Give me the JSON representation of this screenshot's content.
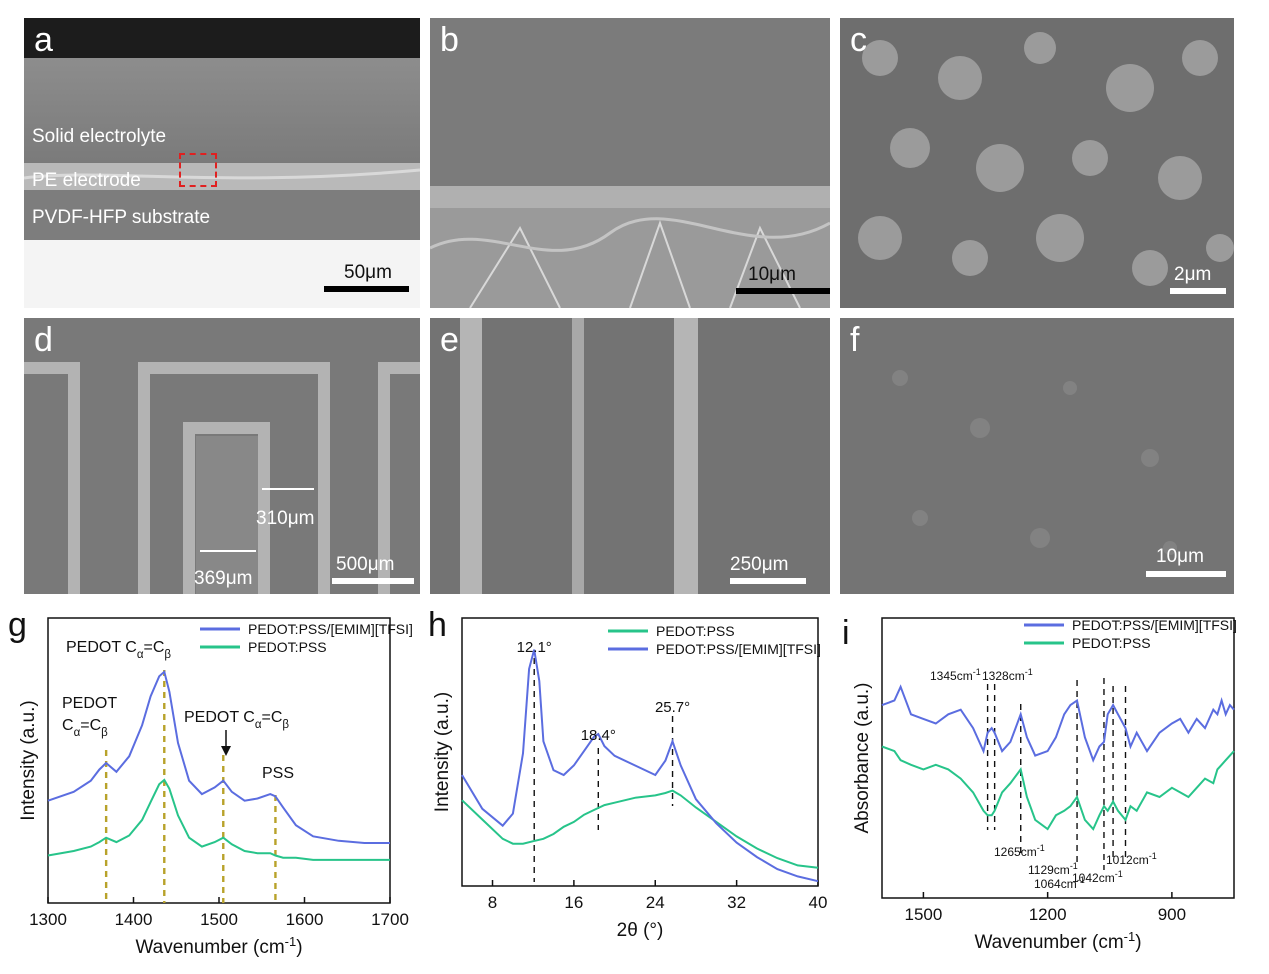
{
  "panel_labels": {
    "a": "a",
    "b": "b",
    "c": "c",
    "d": "d",
    "e": "e",
    "f": "f",
    "g": "g",
    "h": "h",
    "i": "i"
  },
  "panel_a": {
    "layers": [
      "Solid electrolyte",
      "PE electrode",
      "PVDF-HFP substrate"
    ],
    "scale": "50μm"
  },
  "panel_b": {
    "scale": "10μm"
  },
  "panel_c": {
    "scale": "2μm"
  },
  "panel_d": {
    "scale": "500μm",
    "dim1": "310μm",
    "dim2": "369μm"
  },
  "panel_e": {
    "scale": "250μm"
  },
  "panel_f": {
    "scale": "10μm"
  },
  "colors": {
    "blue": "#5b6de0",
    "green": "#27c48a",
    "olive": "#b8a22a"
  },
  "chart_data": [
    {
      "panel": "g",
      "type": "line",
      "xlabel": "Wavenumber (cm⁻¹)",
      "ylabel": "Intensity (a.u.)",
      "xlim": [
        1300,
        1700
      ],
      "xticks": [
        "1300",
        "1400",
        "1500",
        "1600",
        "1700"
      ],
      "series": [
        {
          "name": "PEDOT:PSS/[EMIM][TFSI]",
          "color": "#5b6de0",
          "x": [
            1300,
            1330,
            1350,
            1360,
            1368,
            1380,
            1395,
            1410,
            1420,
            1430,
            1436,
            1442,
            1452,
            1465,
            1480,
            1495,
            1505,
            1515,
            1530,
            1545,
            1560,
            1566,
            1575,
            1590,
            1610,
            1640,
            1670,
            1700
          ],
          "y": [
            0.46,
            0.5,
            0.55,
            0.6,
            0.63,
            0.59,
            0.66,
            0.8,
            0.93,
            1.02,
            1.04,
            0.95,
            0.72,
            0.55,
            0.49,
            0.52,
            0.55,
            0.5,
            0.46,
            0.47,
            0.49,
            0.48,
            0.43,
            0.35,
            0.3,
            0.28,
            0.27,
            0.27
          ]
        },
        {
          "name": "PEDOT:PSS",
          "color": "#27c48a",
          "x": [
            1300,
            1330,
            1350,
            1360,
            1368,
            1380,
            1395,
            1410,
            1420,
            1430,
            1436,
            1442,
            1452,
            1465,
            1480,
            1495,
            1505,
            1515,
            1530,
            1545,
            1560,
            1566,
            1575,
            1590,
            1610,
            1640,
            1670,
            1700
          ],
          "y": [
            0.06,
            0.08,
            0.1,
            0.12,
            0.14,
            0.12,
            0.15,
            0.22,
            0.3,
            0.38,
            0.4,
            0.36,
            0.24,
            0.14,
            0.1,
            0.12,
            0.14,
            0.11,
            0.08,
            0.07,
            0.07,
            0.06,
            0.05,
            0.05,
            0.04,
            0.04,
            0.04,
            0.04
          ]
        }
      ],
      "guide_lines_x": [
        1368,
        1436,
        1505,
        1566
      ],
      "annotations": [
        {
          "text": "PEDOT C",
          "sub1": "α",
          "mid": "=C",
          "sub2": "β",
          "x": 1436,
          "pos": "top"
        },
        {
          "text": "PEDOT",
          "x": 1368,
          "pos": "left-upper"
        },
        {
          "text": "C",
          "sub1": "α",
          "mid": "=C",
          "sub2": "β",
          "x": 1368,
          "pos": "left-lower"
        },
        {
          "text": "PEDOT C",
          "sub1": "α",
          "mid": "=C",
          "sub2": "β",
          "x": 1505,
          "pos": "mid"
        },
        {
          "text": "PSS",
          "x": 1566,
          "pos": "right"
        }
      ]
    },
    {
      "panel": "h",
      "type": "line",
      "xlabel": "2θ (°)",
      "ylabel": "Intensity (a.u.)",
      "xlim": [
        5,
        40
      ],
      "xticks": [
        "8",
        "16",
        "24",
        "32",
        "40"
      ],
      "series": [
        {
          "name": "PEDOT:PSS",
          "color": "#27c48a",
          "x": [
            5,
            7,
            9,
            10,
            11,
            12,
            13,
            14,
            15,
            16,
            17,
            18,
            19,
            20,
            22,
            24,
            25,
            25.7,
            26.5,
            28,
            30,
            32,
            34,
            36,
            38,
            40
          ],
          "y": [
            0.3,
            0.22,
            0.14,
            0.12,
            0.12,
            0.13,
            0.14,
            0.16,
            0.19,
            0.21,
            0.24,
            0.26,
            0.28,
            0.29,
            0.31,
            0.32,
            0.33,
            0.34,
            0.32,
            0.27,
            0.21,
            0.15,
            0.1,
            0.06,
            0.03,
            0.02
          ]
        },
        {
          "name": "PEDOT:PSS/[EMIM][TFSI]",
          "color": "#5b6de0",
          "x": [
            5,
            7,
            9,
            10,
            11,
            11.6,
            12.1,
            12.6,
            13,
            14,
            15,
            16,
            17,
            18,
            18.4,
            19,
            20,
            22,
            24,
            25,
            25.7,
            26.5,
            28,
            30,
            32,
            34,
            36,
            38,
            40
          ],
          "y": [
            0.46,
            0.32,
            0.25,
            0.3,
            0.55,
            0.9,
            0.98,
            0.85,
            0.6,
            0.48,
            0.46,
            0.5,
            0.56,
            0.62,
            0.63,
            0.58,
            0.54,
            0.5,
            0.46,
            0.52,
            0.6,
            0.5,
            0.36,
            0.26,
            0.18,
            0.12,
            0.07,
            0.04,
            0.02
          ]
        }
      ],
      "guide_lines_x": [
        12.1,
        18.4,
        25.7
      ],
      "annotations": [
        "12.1°",
        "18.4°",
        "25.7°"
      ]
    },
    {
      "panel": "i",
      "type": "line",
      "xlabel": "Wavenumber (cm⁻¹)",
      "ylabel": "Absorbance (a.u.)",
      "xlim": [
        1600,
        750
      ],
      "xticks": [
        "1500",
        "1200",
        "900"
      ],
      "series": [
        {
          "name": "PEDOT:PSS/[EMIM][TFSI]",
          "color": "#5b6de0",
          "x": [
            1600,
            1570,
            1555,
            1530,
            1500,
            1470,
            1440,
            1410,
            1380,
            1355,
            1345,
            1335,
            1328,
            1310,
            1290,
            1265,
            1250,
            1230,
            1200,
            1180,
            1160,
            1145,
            1129,
            1110,
            1090,
            1075,
            1064,
            1055,
            1042,
            1030,
            1012,
            1000,
            985,
            960,
            930,
            900,
            880,
            860,
            840,
            820,
            800,
            790,
            780,
            770,
            760,
            750
          ],
          "y": [
            0.84,
            0.86,
            0.92,
            0.8,
            0.78,
            0.76,
            0.8,
            0.82,
            0.74,
            0.64,
            0.72,
            0.74,
            0.72,
            0.64,
            0.68,
            0.8,
            0.7,
            0.62,
            0.64,
            0.7,
            0.8,
            0.84,
            0.86,
            0.7,
            0.6,
            0.66,
            0.68,
            0.8,
            0.84,
            0.8,
            0.74,
            0.66,
            0.72,
            0.64,
            0.72,
            0.76,
            0.78,
            0.72,
            0.78,
            0.74,
            0.82,
            0.8,
            0.86,
            0.8,
            0.84,
            0.82
          ]
        },
        {
          "name": "PEDOT:PSS",
          "color": "#27c48a",
          "x": [
            1600,
            1570,
            1555,
            1530,
            1500,
            1470,
            1440,
            1410,
            1380,
            1355,
            1345,
            1335,
            1328,
            1310,
            1290,
            1265,
            1250,
            1230,
            1200,
            1180,
            1160,
            1145,
            1129,
            1110,
            1090,
            1075,
            1064,
            1055,
            1042,
            1030,
            1012,
            1000,
            985,
            960,
            930,
            900,
            880,
            860,
            840,
            820,
            800,
            790,
            780,
            770,
            760,
            750
          ],
          "y": [
            0.66,
            0.64,
            0.6,
            0.58,
            0.56,
            0.58,
            0.56,
            0.52,
            0.46,
            0.38,
            0.36,
            0.36,
            0.38,
            0.46,
            0.5,
            0.56,
            0.44,
            0.34,
            0.3,
            0.36,
            0.38,
            0.4,
            0.44,
            0.34,
            0.3,
            0.36,
            0.4,
            0.38,
            0.42,
            0.38,
            0.34,
            0.4,
            0.38,
            0.46,
            0.44,
            0.48,
            0.46,
            0.44,
            0.48,
            0.52,
            0.5,
            0.56,
            0.58,
            0.6,
            0.62,
            0.64
          ]
        }
      ],
      "guide_lines_x": [
        1345,
        1328,
        1265,
        1129,
        1064,
        1042,
        1012
      ],
      "annotations": [
        "1345cm⁻¹",
        "1328cm⁻¹",
        "1265cm⁻¹",
        "1129cm⁻¹",
        "1064cm⁻¹",
        "1042cm⁻¹",
        "1012cm⁻¹"
      ]
    }
  ]
}
